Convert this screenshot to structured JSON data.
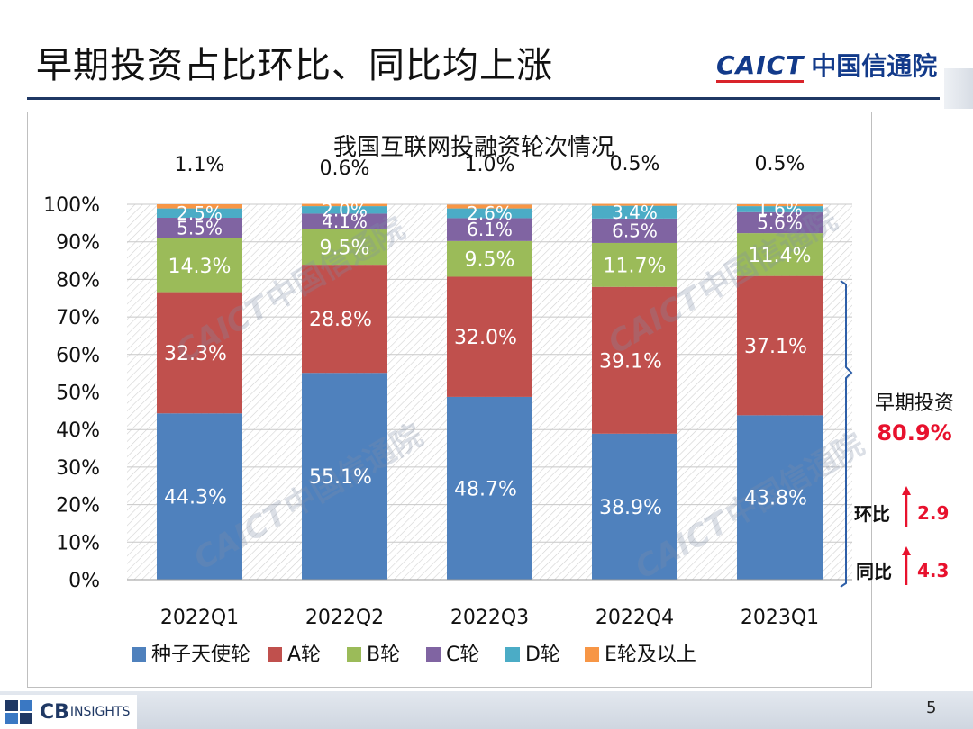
{
  "slide": {
    "title": "早期投资占比环比、同比均上涨",
    "page_number": "5"
  },
  "logo": {
    "en": "CAICT",
    "cn": "中国信通院"
  },
  "footer_logo": {
    "cb": "CB",
    "insights": "INSIGHTS"
  },
  "chart_data": {
    "type": "bar",
    "stacked": true,
    "title": "我国互联网投融资轮次情况",
    "categories": [
      "2022Q1",
      "2022Q2",
      "2022Q3",
      "2022Q4",
      "2023Q1"
    ],
    "ylim": [
      0,
      100
    ],
    "yticks": [
      "0%",
      "10%",
      "20%",
      "30%",
      "40%",
      "50%",
      "60%",
      "70%",
      "80%",
      "90%",
      "100%"
    ],
    "series": [
      {
        "name": "种子天使轮",
        "color": "#4f81bd",
        "values": [
          44.3,
          55.1,
          48.7,
          38.9,
          43.8
        ],
        "labels": [
          "44.3%",
          "55.1%",
          "48.7%",
          "38.9%",
          "43.8%"
        ]
      },
      {
        "name": "A轮",
        "color": "#c0504d",
        "values": [
          32.3,
          28.8,
          32.0,
          39.1,
          37.1
        ],
        "labels": [
          "32.3%",
          "28.8%",
          "32.0%",
          "39.1%",
          "37.1%"
        ]
      },
      {
        "name": "B轮",
        "color": "#9bbb59",
        "values": [
          14.3,
          9.5,
          9.5,
          11.7,
          11.4
        ],
        "labels": [
          "14.3%",
          "9.5%",
          "9.5%",
          "11.7%",
          "11.4%"
        ]
      },
      {
        "name": "C轮",
        "color": "#8064a2",
        "values": [
          5.5,
          4.1,
          6.1,
          6.5,
          5.6
        ],
        "labels": [
          "5.5%",
          "4.1%",
          "6.1%",
          "6.5%",
          "5.6%"
        ]
      },
      {
        "name": "D轮",
        "color": "#4bacc6",
        "values": [
          2.5,
          2.0,
          2.6,
          3.4,
          1.6
        ],
        "labels": [
          "2.5%",
          "2.0%",
          "2.6%",
          "3.4%",
          "1.6%"
        ]
      },
      {
        "name": "E轮及以上",
        "color": "#f79646",
        "values": [
          1.1,
          0.6,
          1.0,
          0.5,
          0.5
        ],
        "labels": [
          "1.1%",
          "0.6%",
          "1.0%",
          "0.5%",
          "0.5%"
        ]
      }
    ],
    "annotations": {
      "early_label": "早期投资",
      "early_value": "80.9%",
      "qoq_label": "环比",
      "qoq_value": "2.9",
      "yoy_label": "同比",
      "yoy_value": "4.3"
    },
    "watermark": {
      "en": "CAICT",
      "cn": "中国信通院"
    }
  }
}
